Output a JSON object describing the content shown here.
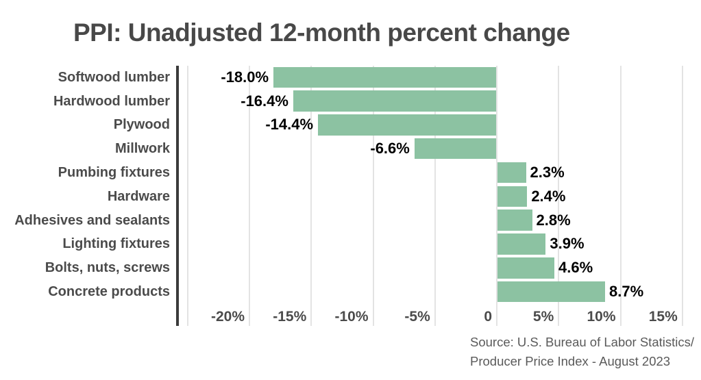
{
  "title": "PPI: Unadjusted 12-month percent change",
  "source": {
    "line1": "Source: U.S. Bureau of Labor Statistics/",
    "line2": "Producer Price Index - August 2023"
  },
  "chart_data": {
    "type": "bar",
    "orientation": "horizontal",
    "title": "PPI: Unadjusted 12-month percent change",
    "categories": [
      "Softwood lumber",
      "Hardwood lumber",
      "Plywood",
      "Millwork",
      "Pumbing fixtures",
      "Hardware",
      "Adhesives and sealants",
      "Lighting fixtures",
      "Bolts, nuts, screws",
      "Concrete products"
    ],
    "values": [
      -18.0,
      -16.4,
      -14.4,
      -6.6,
      2.3,
      2.4,
      2.8,
      3.9,
      4.6,
      8.7
    ],
    "value_labels": [
      "-18.0%",
      "-16.4%",
      "-14.4%",
      "-6.6%",
      "2.3%",
      "2.4%",
      "2.8%",
      "3.9%",
      "4.6%",
      "8.7%"
    ],
    "xlabel": "",
    "ylabel": "",
    "xlim": [
      -25,
      15
    ],
    "grid": true,
    "legend": false,
    "x_axis": {
      "unit": "%",
      "gridline_values": [
        -25,
        -20,
        -15,
        -10,
        -5,
        0,
        5,
        10,
        15
      ],
      "ticks": [
        {
          "value": -20,
          "label": "-20%"
        },
        {
          "value": -15,
          "label": "-15%"
        },
        {
          "value": -10,
          "label": "-10%"
        },
        {
          "value": -5,
          "label": "-5%"
        },
        {
          "value": 0,
          "label": "0"
        },
        {
          "value": 5,
          "label": "5%"
        },
        {
          "value": 10,
          "label": "10%"
        },
        {
          "value": 15,
          "label": "15%"
        }
      ]
    },
    "colors": {
      "bar": "#8cc2a2",
      "gridline": "#e3e3e3",
      "axis_line": "#3b3b3b",
      "value_label": "#000000",
      "category_label": "#4b4b4b",
      "tick_label": "#4b4b4b",
      "title": "#484848",
      "source_text": "#5a5a5a",
      "background": "#ffffff"
    }
  }
}
